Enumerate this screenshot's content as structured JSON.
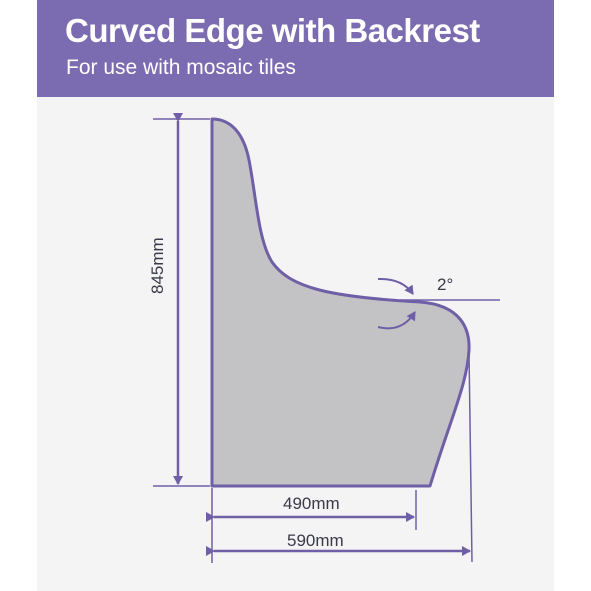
{
  "header": {
    "title": "Curved Edge with Backrest",
    "subtitle": "For use with mosaic tiles"
  },
  "dimensions": {
    "height": "845mm",
    "seat_depth": "490mm",
    "total_depth": "590mm",
    "angle": "2°"
  },
  "colors": {
    "banner": "#7b6bb0",
    "outline": "#6f5fa6",
    "fill": "#c3c3c6",
    "background": "#f4f4f4"
  }
}
